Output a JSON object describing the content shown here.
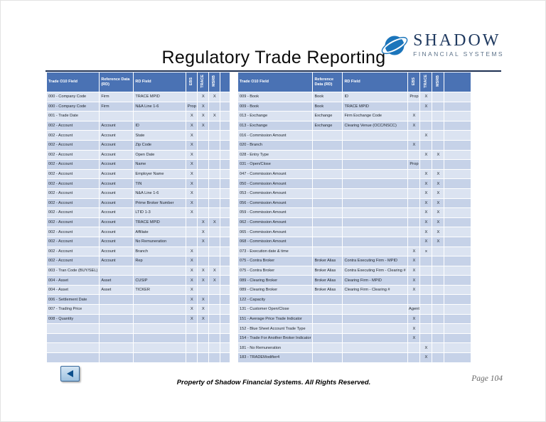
{
  "page": {
    "title": "Regulatory Trade Reporting",
    "footer": "Property of Shadow Financial Systems.  All Rights Reserved.",
    "page_number": "Page 104"
  },
  "logo": {
    "name": "SHADOW",
    "subtitle": "FINANCIAL SYSTEMS",
    "icon": "swoosh-globe-icon"
  },
  "nav": {
    "back_icon": "left-triangle-icon"
  },
  "colors": {
    "table_header_bg": "#4a72b4",
    "table_header_text": "#ffffff",
    "row_odd": "#dbe3f1",
    "row_even": "#c6d2e8",
    "logo_blue": "#1b75bb",
    "logo_navy": "#203a60"
  },
  "left_table": {
    "headers": [
      "Trade O10 Field",
      "Reference Data (RD)",
      "RD Field"
    ],
    "rotated_headers": [
      "EBS",
      "TRACE",
      "MSRB"
    ],
    "empty_rows": 4,
    "rows": [
      [
        "000 - Company Code",
        "Firm",
        "TRACE MPID",
        "",
        "X",
        "X"
      ],
      [
        "000 - Company Code",
        "Firm",
        "N&A Line 1-6",
        "Prop",
        "X",
        ""
      ],
      [
        "001 - Trade Date",
        "",
        "",
        "X",
        "X",
        "X"
      ],
      [
        "002 - Account",
        "Account",
        "ID",
        "X",
        "X",
        ""
      ],
      [
        "002 - Account",
        "Account",
        "State",
        "X",
        "",
        ""
      ],
      [
        "002 - Account",
        "Account",
        "Zip Code",
        "X",
        "",
        ""
      ],
      [
        "002 - Account",
        "Account",
        "Open Date",
        "X",
        "",
        ""
      ],
      [
        "002 - Account",
        "Account",
        "Name",
        "X",
        "",
        ""
      ],
      [
        "002 - Account",
        "Account",
        "Employer Name",
        "X",
        "",
        ""
      ],
      [
        "002 - Account",
        "Account",
        "TIN",
        "X",
        "",
        ""
      ],
      [
        "002 - Account",
        "Account",
        "N&A Line 1-6",
        "X",
        "",
        ""
      ],
      [
        "002 - Account",
        "Account",
        "Prime Broker Number",
        "X",
        "",
        ""
      ],
      [
        "002 - Account",
        "Account",
        "LTID 1-3",
        "X",
        "",
        ""
      ],
      [
        "002 - Account",
        "Account",
        "TRACE MPID",
        "",
        "X",
        "X"
      ],
      [
        "002 - Account",
        "Account",
        "Affiliate",
        "",
        "X",
        ""
      ],
      [
        "002 - Account",
        "Account",
        "No Remuneration",
        "",
        "X",
        ""
      ],
      [
        "002 - Account",
        "Account",
        "Branch",
        "X",
        "",
        ""
      ],
      [
        "002 - Account",
        "Account",
        "Rep",
        "X",
        "",
        ""
      ],
      [
        "003 - Tran Code (BUY/SEL)",
        "",
        "",
        "X",
        "X",
        "X"
      ],
      [
        "004 - Asset",
        "Asset",
        "CUSIP",
        "X",
        "X",
        "X"
      ],
      [
        "004 - Asset",
        "Asset",
        "TICKER",
        "X",
        "",
        ""
      ],
      [
        "006 - Settlement Date",
        "",
        "",
        "X",
        "X",
        ""
      ],
      [
        "007 - Trading Price",
        "",
        "",
        "X",
        "X",
        ""
      ],
      [
        "008 - Quantity",
        "",
        "",
        "X",
        "X",
        ""
      ]
    ]
  },
  "right_table": {
    "headers": [
      "Trade O10 Field",
      "Reference Data (RD)",
      "RD Field"
    ],
    "rotated_headers": [
      "EBS",
      "TRACE",
      "MSRB"
    ],
    "empty_rows": 0,
    "rows": [
      [
        "009 - Book",
        "Book",
        "ID",
        "Prop",
        "X",
        ""
      ],
      [
        "009 - Book",
        "Book",
        "TRACE MPID",
        "",
        "X",
        ""
      ],
      [
        "013 - Exchange",
        "Exchange",
        "Firm Exchange Code",
        "X",
        "",
        ""
      ],
      [
        "013 - Exchange",
        "Exchange",
        "Clearing Venue (OCC/NSCC)",
        "X",
        "",
        ""
      ],
      [
        "016 - Commission Amount",
        "",
        "",
        "",
        "X",
        ""
      ],
      [
        "020 - Branch",
        "",
        "",
        "X",
        "",
        ""
      ],
      [
        "028 - Entry Type",
        "",
        "",
        "",
        "X",
        "X"
      ],
      [
        "031 - Open/Close",
        "",
        "",
        "Prop",
        "",
        ""
      ],
      [
        "047 - Commission Amount",
        "",
        "",
        "",
        "X",
        "X"
      ],
      [
        "050 - Commission Amount",
        "",
        "",
        "",
        "X",
        "X"
      ],
      [
        "053 - Commission Amount",
        "",
        "",
        "",
        "X",
        "X"
      ],
      [
        "056 - Commission Amount",
        "",
        "",
        "",
        "X",
        "X"
      ],
      [
        "059 - Commission Amount",
        "",
        "",
        "",
        "X",
        "X"
      ],
      [
        "062 - Commission Amount",
        "",
        "",
        "",
        "X",
        "X"
      ],
      [
        "065 - Commission Amount",
        "",
        "",
        "",
        "X",
        "X"
      ],
      [
        "068 - Commission Amount",
        "",
        "",
        "",
        "X",
        "X"
      ],
      [
        "073 - Execution date & time",
        "",
        "",
        "X",
        "x",
        ""
      ],
      [
        "075 - Contra Broker",
        "Broker Alias",
        "Contra Executing Firm - MPID",
        "X",
        "",
        ""
      ],
      [
        "075 - Contra Broker",
        "Broker Alias",
        "Contra Executing Firm - Clearing #",
        "X",
        "",
        ""
      ],
      [
        "089 - Clearing Broker",
        "Broker Alias",
        "Clearing Firm - MPID",
        "X",
        "",
        ""
      ],
      [
        "089 - Clearing Broker",
        "Broker Alias",
        "Clearing Firm - Clearing #",
        "X",
        "",
        ""
      ],
      [
        "122 - Capacity",
        "",
        "",
        "",
        "",
        ""
      ],
      [
        "131 - Customer Open/Close",
        "",
        "",
        "Agent",
        "",
        ""
      ],
      [
        "151 - Average Price Trade Indicator",
        "",
        "",
        "X",
        "",
        ""
      ],
      [
        "152 - Blue Sheet Account Trade Type",
        "",
        "",
        "X",
        "",
        ""
      ],
      [
        "154 - Trade For Another Broker Indicator",
        "",
        "",
        "X",
        "",
        ""
      ],
      [
        "181 - No Remuneration",
        "",
        "",
        "",
        "X",
        ""
      ],
      [
        "183 - TRADEModifier4",
        "",
        "",
        "",
        "X",
        ""
      ]
    ]
  }
}
